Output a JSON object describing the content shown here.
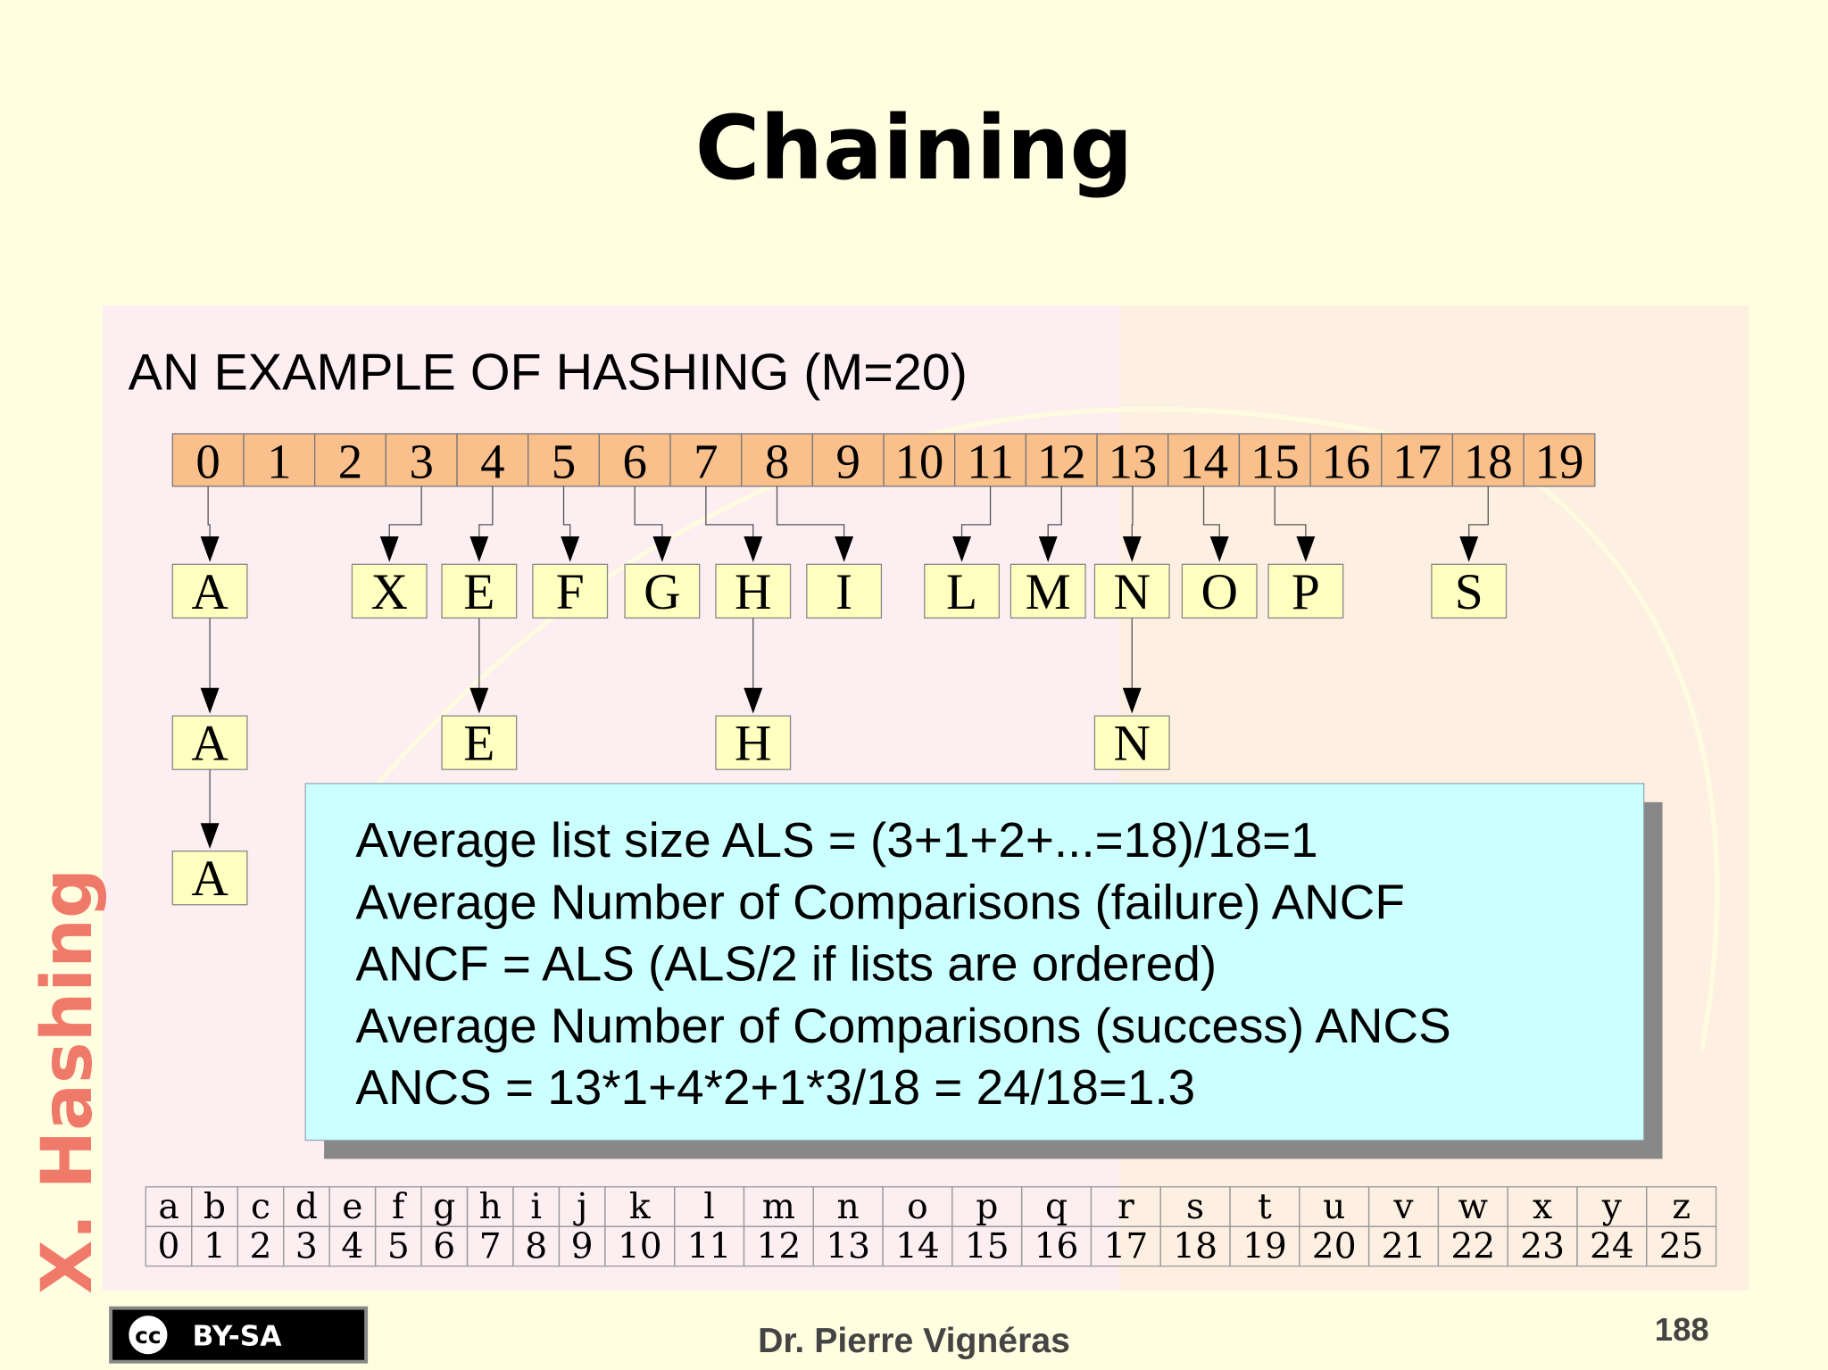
{
  "header": {
    "title": "Chaining"
  },
  "section_label": "X. Hashing",
  "heading": "AN EXAMPLE OF HASHING (M=20)",
  "slots": [
    "0",
    "1",
    "2",
    "3",
    "4",
    "5",
    "6",
    "7",
    "8",
    "9",
    "10",
    "11",
    "12",
    "13",
    "14",
    "15",
    "16",
    "17",
    "18",
    "19"
  ],
  "chains": [
    {
      "slot": 0,
      "keys": [
        "A",
        "A",
        "A"
      ]
    },
    {
      "slot": 3,
      "keys": [
        "X"
      ]
    },
    {
      "slot": 4,
      "keys": [
        "E",
        "E"
      ]
    },
    {
      "slot": 5,
      "keys": [
        "F"
      ]
    },
    {
      "slot": 6,
      "keys": [
        "G"
      ]
    },
    {
      "slot": 7,
      "keys": [
        "H",
        "H"
      ]
    },
    {
      "slot": 8,
      "keys": [
        "I"
      ]
    },
    {
      "slot": 11,
      "keys": [
        "L"
      ]
    },
    {
      "slot": 12,
      "keys": [
        "M"
      ]
    },
    {
      "slot": 13,
      "keys": [
        "N",
        "N"
      ]
    },
    {
      "slot": 14,
      "keys": [
        "O"
      ]
    },
    {
      "slot": 15,
      "keys": [
        "P"
      ]
    },
    {
      "slot": 18,
      "keys": [
        "S"
      ]
    }
  ],
  "info_lines": [
    "Average list size ALS = (3+1+2+...=18)/18=1",
    "Average Number of Comparisons (failure) ANCF",
    "ANCF = ALS (ALS/2 if lists are ordered)",
    "Average Number of Comparisons (success) ANCS",
    "ANCS = 13*1+4*2+1*3/18 = 24/18=1.3"
  ],
  "mapping": {
    "letters": [
      "a",
      "b",
      "c",
      "d",
      "e",
      "f",
      "g",
      "h",
      "i",
      "j",
      "k",
      "l",
      "m",
      "n",
      "o",
      "p",
      "q",
      "r",
      "s",
      "t",
      "u",
      "v",
      "w",
      "x",
      "y",
      "z"
    ],
    "codes": [
      "0",
      "1",
      "2",
      "3",
      "4",
      "5",
      "6",
      "7",
      "8",
      "9",
      "10",
      "11",
      "12",
      "13",
      "14",
      "15",
      "16",
      "17",
      "18",
      "19",
      "20",
      "21",
      "22",
      "23",
      "24",
      "25"
    ]
  },
  "footer": {
    "license_icon": "cc",
    "license": "BY-SA",
    "author": "Dr. Pierre Vignéras",
    "page": "188"
  }
}
